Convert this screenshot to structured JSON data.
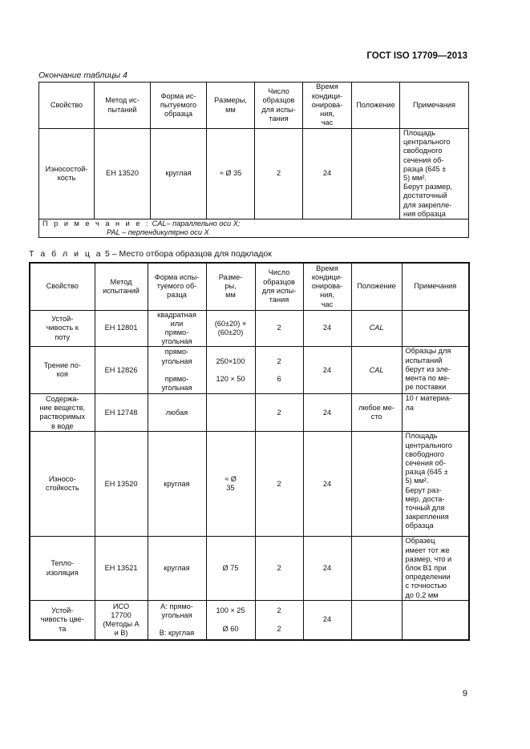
{
  "header": {
    "doc_id": "ГОСТ ISO 17709—2013"
  },
  "table4": {
    "caption": "Окончание таблицы 4",
    "columns": [
      "Свойство",
      "Метод ис-\nпытаний",
      "Форма ис-\nпытуемого\nобразца",
      "Размеры,\nмм",
      "Число\nобразцов\nдля испы-\nтания",
      "Время\nкондици-\nонирова-\nния,\nчас",
      "Положение",
      "Примечания"
    ],
    "rows": [
      {
        "cells": [
          "Износостой-\nкость",
          "ЕН 13520",
          "круглая",
          "≈     Ø 35",
          "2",
          "24",
          "",
          "Площадь\nцентрального\nсвободного\nсечения об-\nразца (645 ±\n5) мм².\nБерут размер,\nдостаточный\nдля закрепле-\nния образца"
        ]
      }
    ],
    "footnote": {
      "label": "П р и м е ч а н и е :",
      "line1": "CAL– параллельно оси X;",
      "line2": "PAL – перпендикулярно оси X"
    }
  },
  "table5": {
    "caption_label": "Т а б л и ц а",
    "caption": "5 – Место отбора образцов для подкладок",
    "columns": [
      "Свойство",
      "Метод\nиспытаний",
      "Форма испы-\nтуемого об-\nразца",
      "Разме-\nры,\nмм",
      "Число\nобразцов\nдля испы-\nтания",
      "Время\nкондици-\nонирова-\nния,\nчас",
      "Положение",
      "Примечания"
    ],
    "rows": [
      {
        "cells": [
          "Устой-\nчивость к\nпоту",
          "ЕН 12801",
          "квадратная\nили\nпрямо-\nугольная",
          "(60±20) ×\n(60±20)",
          "2",
          "24",
          "CAL",
          ""
        ]
      },
      {
        "cells": [
          "Трение по-\nкоя",
          "ЕН 12826",
          "прямо-\nугольная\n\nпрямо-\nугольная",
          "250×100\n\n120 × 50",
          "2\n\n6",
          "24",
          "CAL",
          "Образцы для\nиспытаний\nберут из эле-\nмента по ме-\nре поставки"
        ]
      },
      {
        "cells": [
          "Содержа-\nние веществ,\nрастворимых\nв воде",
          "ЕН 12748",
          "любая",
          "",
          "2",
          "24",
          "любое ме-\nсто",
          "10 г материа-\nла"
        ]
      },
      {
        "cells": [
          "Износо-\nстойкость",
          "ЕН 13520",
          "круглая",
          "≈     Ø\n35",
          "2",
          "24",
          "",
          "Площадь\nцентрального\nсвободного\nсечения об-\nразца (645 ±\n5) мм².\nБерут раз-\nмер, доста-\nточный для\nзакрепления\nобразца"
        ]
      },
      {
        "cells": [
          "Тепло-\nизоляция",
          "ЕН 13521",
          "круглая",
          "Ø 75",
          "2",
          "24",
          "",
          "Образец\nимеет тот же\nразмер, что и\nблок В1 при\nопределении\nс точностью\nдо 0,2 мм"
        ]
      },
      {
        "cells": [
          "Устой-\nчивость цве-\nта",
          "ИСО\n17700\n(Методы А\nи В)",
          "А: прямо-\nугольная\n\nВ: круглая",
          "100 × 25\n\nØ 60",
          "2\n\n2",
          "24",
          "",
          ""
        ]
      }
    ]
  },
  "page_number": "9"
}
